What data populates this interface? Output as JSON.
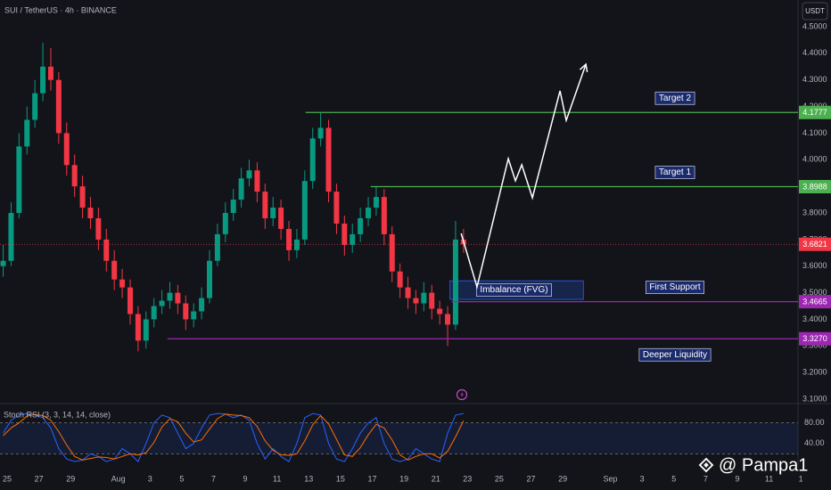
{
  "header": "SUI / TetherUS · 4h · BINANCE",
  "currency_button": "USDT",
  "watermark": "@ Pampa1",
  "chart_data": [
    {
      "type": "candlestick",
      "x": [
        -0.25,
        0.25,
        0.75,
        1.25,
        1.75,
        2.25,
        2.75,
        3.25,
        3.75,
        4.25,
        4.75,
        5.25,
        5.75,
        6.25,
        6.75,
        7.25,
        7.75,
        8.25,
        8.75,
        9.25,
        9.75,
        10.25,
        10.75,
        11.25,
        11.75,
        12.25,
        12.75,
        13.25,
        13.75,
        14.25,
        14.75,
        15.25,
        15.75,
        16.25,
        16.75,
        17.25,
        17.75,
        18.25,
        18.75,
        19.25,
        19.75,
        20.25,
        20.75,
        21.25,
        21.75,
        22.25,
        22.75,
        23.25,
        23.75,
        24.25,
        24.75,
        25.25,
        25.75,
        26.25,
        26.75,
        27.25,
        27.75,
        28.25,
        28.75
      ],
      "open": [
        3.6,
        3.62,
        3.8,
        4.05,
        4.15,
        4.25,
        4.35,
        4.3,
        4.1,
        3.98,
        3.9,
        3.82,
        3.78,
        3.7,
        3.62,
        3.55,
        3.52,
        3.42,
        3.32,
        3.4,
        3.45,
        3.47,
        3.5,
        3.46,
        3.4,
        3.43,
        3.48,
        3.62,
        3.72,
        3.8,
        3.85,
        3.93,
        3.96,
        3.88,
        3.78,
        3.82,
        3.74,
        3.66,
        3.7,
        3.92,
        4.08,
        4.12,
        3.88,
        3.76,
        3.68,
        3.72,
        3.78,
        3.82,
        3.86,
        3.72,
        3.58,
        3.52,
        3.48,
        3.46,
        3.5,
        3.44,
        3.42,
        3.38,
        3.7
      ],
      "high": [
        3.68,
        3.84,
        4.1,
        4.2,
        4.3,
        4.44,
        4.42,
        4.33,
        4.14,
        4.02,
        3.94,
        3.86,
        3.82,
        3.74,
        3.66,
        3.59,
        3.55,
        3.45,
        3.43,
        3.48,
        3.51,
        3.54,
        3.53,
        3.49,
        3.46,
        3.52,
        3.66,
        3.76,
        3.84,
        3.89,
        3.97,
        4.0,
        3.99,
        3.91,
        3.86,
        3.85,
        3.77,
        3.74,
        3.96,
        4.12,
        4.1777,
        4.15,
        3.91,
        3.79,
        3.76,
        3.82,
        3.86,
        3.8988,
        3.89,
        3.75,
        3.61,
        3.56,
        3.51,
        3.54,
        3.53,
        3.47,
        3.45,
        3.77,
        3.74
      ],
      "low": [
        3.56,
        3.6,
        3.78,
        4.02,
        4.12,
        4.22,
        4.26,
        4.06,
        3.94,
        3.86,
        3.78,
        3.74,
        3.66,
        3.58,
        3.51,
        3.48,
        3.38,
        3.28,
        3.29,
        3.37,
        3.42,
        3.44,
        3.42,
        3.36,
        3.37,
        3.4,
        3.46,
        3.6,
        3.69,
        3.77,
        3.82,
        3.9,
        3.84,
        3.74,
        3.75,
        3.7,
        3.62,
        3.63,
        3.68,
        3.89,
        4.05,
        3.84,
        3.72,
        3.64,
        3.65,
        3.69,
        3.75,
        3.79,
        3.68,
        3.54,
        3.48,
        3.44,
        3.42,
        3.43,
        3.4,
        3.38,
        3.3,
        3.36,
        3.65
      ],
      "close": [
        3.62,
        3.8,
        4.05,
        4.15,
        4.25,
        4.35,
        4.3,
        4.1,
        3.98,
        3.9,
        3.82,
        3.78,
        3.7,
        3.62,
        3.55,
        3.52,
        3.42,
        3.32,
        3.4,
        3.45,
        3.47,
        3.5,
        3.46,
        3.4,
        3.43,
        3.48,
        3.62,
        3.72,
        3.8,
        3.85,
        3.93,
        3.96,
        3.88,
        3.78,
        3.82,
        3.74,
        3.66,
        3.7,
        3.92,
        4.08,
        4.12,
        3.88,
        3.76,
        3.68,
        3.72,
        3.78,
        3.82,
        3.86,
        3.72,
        3.58,
        3.52,
        3.48,
        3.46,
        3.5,
        3.44,
        3.42,
        3.38,
        3.7,
        3.6821
      ],
      "up_color": "#089981",
      "down_color": "#f23645",
      "xlim": [
        -0.45,
        51.9
      ],
      "xticks": [
        {
          "value": 0,
          "label": "25"
        },
        {
          "value": 2,
          "label": "27"
        },
        {
          "value": 4,
          "label": "29"
        },
        {
          "value": 7,
          "label": "Aug"
        },
        {
          "value": 9,
          "label": "3"
        },
        {
          "value": 11,
          "label": "5"
        },
        {
          "value": 13,
          "label": "7"
        },
        {
          "value": 15,
          "label": "9"
        },
        {
          "value": 17,
          "label": "11"
        },
        {
          "value": 19,
          "label": "13"
        },
        {
          "value": 21,
          "label": "15"
        },
        {
          "value": 23,
          "label": "17"
        },
        {
          "value": 25,
          "label": "19"
        },
        {
          "value": 27,
          "label": "21"
        },
        {
          "value": 29,
          "label": "23"
        },
        {
          "value": 31,
          "label": "25"
        },
        {
          "value": 33,
          "label": "27"
        },
        {
          "value": 35,
          "label": "29"
        },
        {
          "value": 38,
          "label": "Sep"
        },
        {
          "value": 40,
          "label": "3"
        },
        {
          "value": 42,
          "label": "5"
        },
        {
          "value": 44,
          "label": "7"
        },
        {
          "value": 46,
          "label": "9"
        },
        {
          "value": 48,
          "label": "11"
        },
        {
          "value": 50,
          "label": "1"
        }
      ],
      "ylim": [
        3.0934,
        4.6005
      ],
      "yticks": [
        {
          "value": 4.5,
          "label": "4.5000"
        },
        {
          "value": 4.4,
          "label": "4.4000"
        },
        {
          "value": 4.3,
          "label": "4.3000"
        },
        {
          "value": 4.2,
          "label": "4.2000"
        },
        {
          "value": 4.1,
          "label": "4.1000"
        },
        {
          "value": 4.0,
          "label": "4.0000"
        },
        {
          "value": 3.9,
          "label": "3.9000"
        },
        {
          "value": 3.8,
          "label": "3.8000"
        },
        {
          "value": 3.7,
          "label": "3.7000"
        },
        {
          "value": 3.6,
          "label": "3.6000"
        },
        {
          "value": 3.5,
          "label": "3.5000"
        },
        {
          "value": 3.4,
          "label": "3.4000"
        },
        {
          "value": 3.3,
          "label": "3.3000"
        },
        {
          "value": 3.2,
          "label": "3.2000"
        },
        {
          "value": 3.1,
          "label": "3.1000"
        }
      ],
      "grid": false,
      "levels": [
        {
          "name": "Target 2",
          "name_position": "above",
          "value": 4.1777,
          "label": "4.1777",
          "start": 18.8,
          "color": "#4caf50"
        },
        {
          "name": "Target 1",
          "name_position": "above",
          "value": 3.8988,
          "label": "3.8988",
          "start": 22.9,
          "color": "#4caf50"
        },
        {
          "value": 3.6821,
          "label": "3.6821",
          "color": "#f23645",
          "dotted": true
        },
        {
          "name": "First Support",
          "name_position": "above",
          "value": 3.4665,
          "label": "3.4665",
          "start": 28.0,
          "color": "#9c27b0"
        },
        {
          "name": "Deeper Liquidity",
          "name_position": "below",
          "value": 3.327,
          "label": "3.3270",
          "start": 10.1,
          "color": "#9c27b0"
        }
      ],
      "zones": [
        {
          "name": "Imbalance (FVG)",
          "x": [
            27.9,
            36.3
          ],
          "y": [
            3.475,
            3.545
          ]
        }
      ],
      "projection": {
        "x": [
          28.6,
          29.6,
          31.57,
          32.02,
          32.42,
          33.09,
          34.83,
          35.22,
          36.46
        ],
        "values": [
          3.723,
          3.522,
          4.004,
          3.921,
          3.981,
          3.857,
          4.259,
          4.148,
          4.359
        ],
        "color": "#ffffff"
      }
    },
    {
      "type": "line",
      "title": "Stoch RSI (3, 3, 14, 14, close)",
      "x": [
        -0.25,
        0.25,
        0.75,
        1.25,
        1.75,
        2.25,
        2.75,
        3.25,
        3.75,
        4.25,
        4.75,
        5.25,
        5.75,
        6.25,
        6.75,
        7.25,
        7.75,
        8.25,
        8.75,
        9.25,
        9.75,
        10.25,
        10.75,
        11.25,
        11.75,
        12.25,
        12.75,
        13.25,
        13.75,
        14.25,
        14.75,
        15.25,
        15.75,
        16.25,
        16.75,
        17.25,
        17.75,
        18.25,
        18.75,
        19.25,
        19.75,
        20.25,
        20.75,
        21.25,
        21.75,
        22.25,
        22.75,
        23.25,
        23.75,
        24.25,
        24.75,
        25.25,
        25.75,
        26.25,
        26.75,
        27.25,
        27.75,
        28.25,
        28.75
      ],
      "xlim": [
        -0.45,
        51.9
      ],
      "ylim": [
        0,
        100
      ],
      "yticks": [
        {
          "value": 80,
          "label": "80.00"
        },
        {
          "value": 40,
          "label": "40.00"
        }
      ],
      "band": [
        20,
        80
      ],
      "series": [
        {
          "color": "#2962ff",
          "values": [
            60,
            85,
            95,
            98,
            95,
            90,
            70,
            30,
            10,
            5,
            8,
            20,
            15,
            5,
            10,
            30,
            20,
            5,
            40,
            80,
            95,
            90,
            60,
            30,
            40,
            70,
            95,
            98,
            97,
            90,
            95,
            85,
            40,
            10,
            30,
            15,
            5,
            40,
            90,
            98,
            95,
            40,
            10,
            5,
            30,
            60,
            80,
            90,
            40,
            10,
            5,
            10,
            30,
            20,
            10,
            5,
            60,
            95,
            98
          ]
        },
        {
          "color": "#ff6d00",
          "values": [
            55,
            70,
            80,
            93,
            96,
            94,
            85,
            63,
            37,
            15,
            8,
            11,
            14,
            13,
            10,
            15,
            20,
            18,
            22,
            42,
            72,
            88,
            82,
            60,
            43,
            47,
            68,
            88,
            97,
            95,
            94,
            90,
            73,
            45,
            27,
            18,
            17,
            20,
            45,
            76,
            94,
            78,
            48,
            18,
            15,
            32,
            57,
            77,
            70,
            47,
            18,
            8,
            15,
            20,
            20,
            12,
            25,
            53,
            84
          ]
        }
      ]
    }
  ]
}
